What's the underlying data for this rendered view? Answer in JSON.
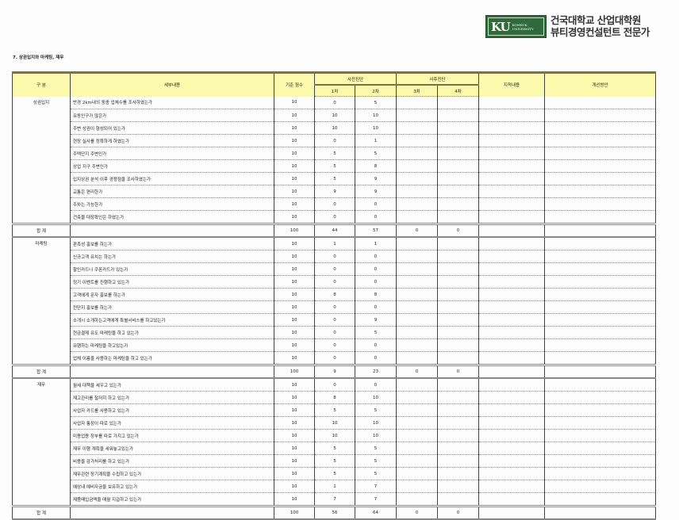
{
  "header": {
    "logo_text": "KU",
    "logo_sub": [
      "KONKUK",
      "UNIVERSITY"
    ],
    "org_line1": "건국대학교 산업대학원",
    "org_line2": "뷰티경영컨설턴트 전문가",
    "brand_color": "#2f6b3a"
  },
  "title": "7. 상권입지와 마케팅, 재무",
  "table": {
    "columns": {
      "category": "구 분",
      "detail": "세부내용",
      "standard": "기준 점수",
      "pre": "사전진단",
      "post": "사후진단",
      "r1": "1차",
      "r2": "2차",
      "r3": "3차",
      "r4": "4차",
      "remarks": "지적내용",
      "improvement": "개선방안"
    },
    "header_color": "#fbf9ab",
    "sections": [
      {
        "category": "상권입지",
        "rows": [
          {
            "item": "반경 2km내의 동종 업체수를 조사하였는가",
            "std": "10",
            "r1": "0",
            "r2": "5"
          },
          {
            "item": "유동인구가 많은가",
            "std": "10",
            "r1": "10",
            "r2": "10"
          },
          {
            "item": "주변 상권이 형성되어 있는가",
            "std": "10",
            "r1": "10",
            "r2": "10"
          },
          {
            "item": "현장 실사를 정확하게 하였는가",
            "std": "10",
            "r1": "0",
            "r2": "1"
          },
          {
            "item": "주택단지 주변인가",
            "std": "10",
            "r1": "5",
            "r2": "5"
          },
          {
            "item": "상업 지구 주변인가",
            "std": "10",
            "r1": "5",
            "r2": "8"
          },
          {
            "item": "입지상권 분석 이후 경쟁점을 조사하였는가",
            "std": "10",
            "r1": "5",
            "r2": "9"
          },
          {
            "item": "교통은 편리한가",
            "std": "10",
            "r1": "9",
            "r2": "9"
          },
          {
            "item": "주차는 가능한가",
            "std": "10",
            "r1": "0",
            "r2": "0"
          },
          {
            "item": "건축물 대장확인은 하였는가",
            "std": "10",
            "r1": "0",
            "r2": "0"
          }
        ],
        "total": {
          "label": "합 계",
          "std": "100",
          "r1": "44",
          "r2": "57",
          "r3": "0",
          "r4": "0"
        }
      },
      {
        "category": "마케팅",
        "rows": [
          {
            "item": "판촉성 홍보를 하는가",
            "std": "10",
            "r1": "1",
            "r2": "1"
          },
          {
            "item": "신규고객 유치는 하는가",
            "std": "10",
            "r1": "0",
            "r2": "0"
          },
          {
            "item": "할인카드나 쿠폰카드가 있는가",
            "std": "10",
            "r1": "0",
            "r2": "0"
          },
          {
            "item": "정기 이벤트를 진행하고 있는가",
            "std": "10",
            "r1": "0",
            "r2": "0"
          },
          {
            "item": "고객에게 문자 홍보를 하는가",
            "std": "10",
            "r1": "8",
            "r2": "8"
          },
          {
            "item": "전단지 홍보를 하는가",
            "std": "10",
            "r1": "0",
            "r2": "0"
          },
          {
            "item": "소개시 소개하는고객에게 특별서비스를 하고있는가",
            "std": "10",
            "r1": "0",
            "r2": "9"
          },
          {
            "item": "현금결제 유도 마케팅을 하고 있는가",
            "std": "10",
            "r1": "0",
            "r2": "5"
          },
          {
            "item": "유행하는 마케팅을 하고있는가",
            "std": "10",
            "r1": "0",
            "r2": "0"
          },
          {
            "item": "업체 이름을 사용하는 마케팅을 하고 있는가",
            "std": "10",
            "r1": "0",
            "r2": "0"
          }
        ],
        "total": {
          "label": "합 계",
          "std": "100",
          "r1": "9",
          "r2": "23",
          "r3": "0",
          "r4": "0"
        }
      },
      {
        "category": "재무",
        "rows": [
          {
            "item": "월세 대책을 세우고 있는가",
            "std": "10",
            "r1": "0",
            "r2": "0"
          },
          {
            "item": "재고관리를 철저히 하고 있는가",
            "std": "10",
            "r1": "8",
            "r2": "10"
          },
          {
            "item": "사업자 카드를 사용하고 있는가",
            "std": "10",
            "r1": "5",
            "r2": "5"
          },
          {
            "item": "사업자 통장이 따로 있는가",
            "std": "10",
            "r1": "10",
            "r2": "10"
          },
          {
            "item": "미용업용 장부를 따로 가지고 있는가",
            "std": "10",
            "r1": "10",
            "r2": "10"
          },
          {
            "item": "재무 이행 계획을 세워놓고있는가",
            "std": "10",
            "r1": "5",
            "r2": "5"
          },
          {
            "item": "비용을 감가처리를 하고 있는가",
            "std": "10",
            "r1": "5",
            "r2": "5"
          },
          {
            "item": "재무관련 장기계획을 수립하고 있는가",
            "std": "10",
            "r1": "5",
            "r2": "5"
          },
          {
            "item": "예상내 예비자금을 보유하고 있는가",
            "std": "10",
            "r1": "1",
            "r2": "7"
          },
          {
            "item": "제품매입금액을 매월 지급하고 있는가",
            "std": "10",
            "r1": "7",
            "r2": "7"
          }
        ],
        "total": {
          "label": "합 계",
          "std": "100",
          "r1": "56",
          "r2": "64",
          "r3": "0",
          "r4": "0"
        }
      }
    ]
  }
}
